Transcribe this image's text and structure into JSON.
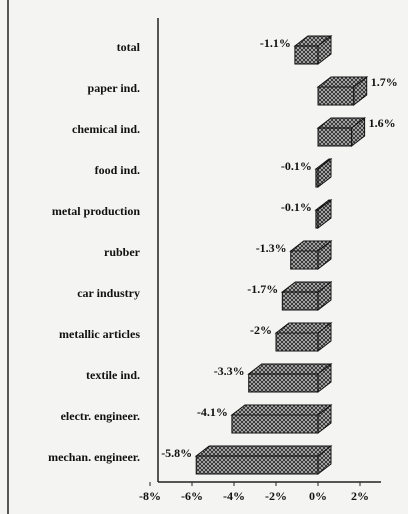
{
  "chart_data": {
    "type": "bar3d",
    "orientation": "horizontal",
    "categories": [
      "total",
      "paper ind.",
      "chemical ind.",
      "food ind.",
      "metal production",
      "rubber",
      "car industry",
      "metallic articles",
      "textile ind.",
      "electr. engineer.",
      "mechan. engineer."
    ],
    "values": [
      -1.1,
      1.7,
      1.6,
      -0.1,
      -0.1,
      -1.3,
      -1.7,
      -2,
      -3.3,
      -4.1,
      -5.8
    ],
    "value_labels": [
      "-1.1%",
      "1.7%",
      "1.6%",
      "-0.1%",
      "-0.1%",
      "-1.3%",
      "-1.7%",
      "-2%",
      "-3.3%",
      "-4.1%",
      "-5.8%"
    ],
    "color": "#888888",
    "xlim": [
      -8,
      3
    ],
    "xticks": [
      {
        "value": -8,
        "label": "-8%"
      },
      {
        "value": -6,
        "label": "-6%"
      },
      {
        "value": -4,
        "label": "-4%"
      },
      {
        "value": -2,
        "label": "-2%"
      },
      {
        "value": 0,
        "label": "0%"
      },
      {
        "value": 2,
        "label": "2%"
      }
    ]
  }
}
